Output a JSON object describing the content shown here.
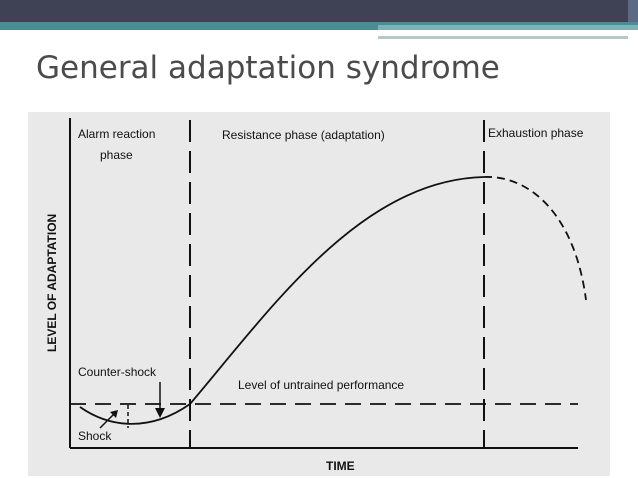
{
  "slide": {
    "title": "General adaptation syndrome",
    "colors": {
      "topbar": "#3f4254",
      "teal": "#4e8c94",
      "title_text": "#4b4b4b",
      "scan_bg": "#e9e9e9"
    }
  },
  "diagram": {
    "phases": [
      {
        "id": "alarm",
        "line1": "Alarm reaction",
        "line2": "phase"
      },
      {
        "id": "resistance",
        "line1": "Resistance phase (adaptation)"
      },
      {
        "id": "exhaustion",
        "line1": "Exhaustion phase"
      }
    ],
    "y_axis_label": "LEVEL OF ADAPTATION",
    "x_axis_label": "TIME",
    "baseline_label": "Level of untrained performance",
    "annotations": {
      "counter_shock": "Counter-shock",
      "shock": "Shock"
    }
  }
}
